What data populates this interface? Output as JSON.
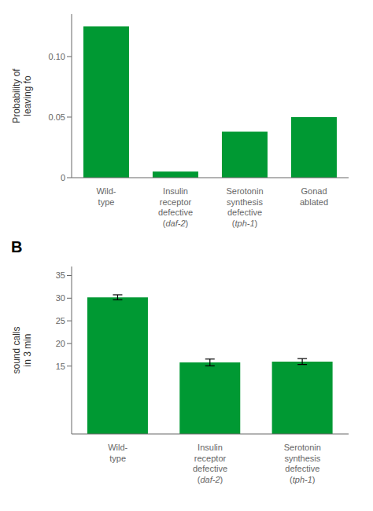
{
  "chart_data": [
    {
      "type": "bar",
      "categories": [
        "Wild-\ntype",
        "Insulin\nreceptor\ndefective\n(daf-2)",
        "Serotonin\nsynthesis\ndefective\n(tph-1)",
        "Gonad\nablated"
      ],
      "values": [
        0.125,
        0.005,
        0.038,
        0.05
      ],
      "color": "#009933",
      "ylabel": "Probability of\nleaving fo",
      "ylim": [
        0,
        0.135
      ],
      "yticks": [
        0,
        0.05,
        {
          "value": 0.1,
          "label": "0.10"
        }
      ],
      "grid": false
    },
    {
      "type": "bar",
      "annotation": "B",
      "categories": [
        "Wild-\ntype",
        "Insulin\nreceptor\ndefective\n(daf-2)",
        "Serotonin\nsynthesis\ndefective\n(tph-1)"
      ],
      "values": [
        30.2,
        15.8,
        16.0
      ],
      "errors": [
        0.55,
        0.75,
        0.65
      ],
      "color": "#009933",
      "ylabel": "sound calls\nin 3 min",
      "ylim": [
        0,
        37
      ],
      "yticks": [
        15,
        20,
        25,
        30,
        35
      ],
      "grid": false
    }
  ]
}
